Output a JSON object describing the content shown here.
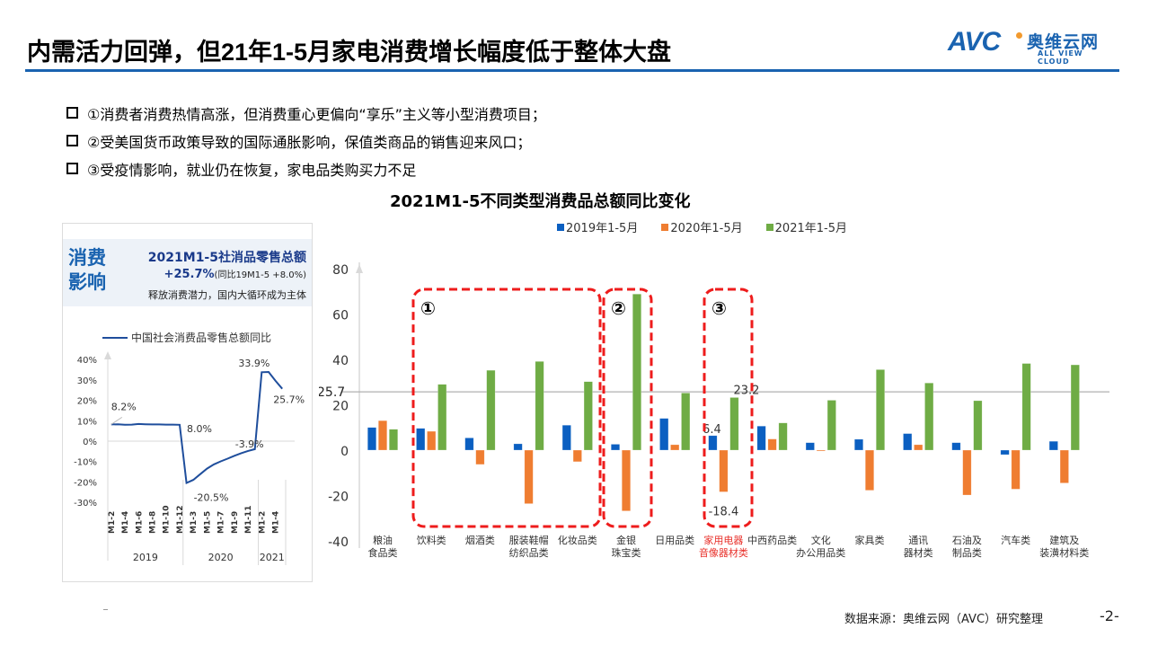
{
  "header": {
    "title": "内需活力回弹，但21年1-5月家电消费增长幅度低于整体大盘",
    "logo": {
      "mark": "AVC",
      "cn": "奥维云网",
      "en": "ALL VIEW CLOUD"
    }
  },
  "bullets": [
    "①消费者消费热情高涨，但消费重心更偏向“享乐”主义等小型消费项目；",
    "②受美国货币政策导致的国际通胀影响，保值类商品的销售迎来风口；",
    "③受疫情影响，就业仍在恢复，家电品类购买力不足"
  ],
  "panel": {
    "big_label": "消费影响",
    "headline": "2021M1-5社消品零售总额",
    "growth": "+25.7%",
    "growth_note": "(同比19M1-5 +8.0%)",
    "subtitle": "释放消费潜力，国内大循环成为主体",
    "legend": "中国社会消费品零售总额同比"
  },
  "chart_data": [
    {
      "type": "line",
      "title": "中国社会消费品零售总额同比",
      "x": [
        "M1-2",
        "M1-3",
        "M1-4",
        "M1-5",
        "M1-6",
        "M1-7",
        "M1-8",
        "M1-9",
        "M1-10",
        "M1-11",
        "M1-12",
        "M1-2",
        "M1-3",
        "M1-4",
        "M1-5",
        "M1-6",
        "M1-7",
        "M1-8",
        "M1-9",
        "M1-10",
        "M1-11",
        "M1-12",
        "M1-2",
        "M1-3",
        "M1-4",
        "M1-5"
      ],
      "tick_labels": [
        "M1-2",
        "M1-4",
        "M1-6",
        "M1-8",
        "M1-10",
        "M1-12",
        "M1-3",
        "M1-5",
        "M1-7",
        "M1-9",
        "M1-11",
        "M1-2",
        "M1-4"
      ],
      "year_groups": [
        {
          "year": "2019",
          "count": 11
        },
        {
          "year": "2020",
          "count": 11
        },
        {
          "year": "2021",
          "count": 4
        }
      ],
      "values": [
        8.2,
        8.3,
        8.0,
        8.1,
        8.4,
        8.3,
        8.2,
        8.2,
        8.1,
        8.1,
        8.0,
        -20.5,
        -19.0,
        -16.2,
        -13.5,
        -11.4,
        -9.9,
        -8.6,
        -7.2,
        -5.9,
        -4.8,
        -3.9,
        33.8,
        33.9,
        29.6,
        25.7
      ],
      "annotations": [
        "8.2%",
        "8.0%",
        "-20.5%",
        "-3.9%",
        "33.9%",
        "25.7%"
      ],
      "yticks": [
        "40%",
        "30%",
        "20%",
        "10%",
        "0%",
        "-10%",
        "-20%",
        "-30%"
      ],
      "ylim": [
        -30,
        40
      ]
    },
    {
      "type": "bar",
      "title": "2021M1-5不同类型消费品总额同比变化",
      "categories": [
        "粮油\n食品类",
        "饮料类",
        "烟酒类",
        "服装鞋帽\n纺织品类",
        "化妆品类",
        "金银\n珠宝类",
        "日用品类",
        "家用电器\n音像器材类",
        "中西药品类",
        "文化\n办公用品类",
        "家具类",
        "通讯\n器材类",
        "石油及\n制品类",
        "汽车类",
        "建筑及\n装潢材料类"
      ],
      "series": [
        {
          "name": "2019年1-5月",
          "color": "#0b5fc1",
          "values": [
            10.0,
            9.6,
            5.4,
            2.8,
            11.0,
            2.6,
            14.0,
            6.4,
            10.6,
            3.3,
            4.8,
            7.3,
            3.3,
            -2.0,
            3.9
          ]
        },
        {
          "name": "2020年1-5月",
          "color": "#ef7d31",
          "values": [
            13.0,
            8.3,
            -6.3,
            -23.6,
            -5.1,
            -26.8,
            2.4,
            -18.4,
            4.9,
            -0.3,
            -17.7,
            2.4,
            -19.8,
            -17.2,
            -14.5
          ]
        },
        {
          "name": "2021年1-5月",
          "color": "#6fac45",
          "values": [
            9.2,
            29.0,
            35.2,
            39.1,
            30.2,
            68.8,
            25.2,
            23.2,
            12.0,
            22.0,
            35.5,
            29.6,
            21.8,
            38.2,
            37.6
          ]
        }
      ],
      "reference_line": {
        "value": 25.7,
        "label": "25.7"
      },
      "data_labels": [
        "23.2",
        "6.4",
        "-18.4"
      ],
      "highlight_groups": [
        {
          "label": "①",
          "from": 1,
          "to": 4
        },
        {
          "label": "②",
          "from": 5,
          "to": 5
        },
        {
          "label": "③",
          "from": 7,
          "to": 7
        }
      ],
      "highlight_category": "家用电器\n音像器材类",
      "yticks": [
        "80",
        "60",
        "40",
        "20",
        "0",
        "-20",
        "-40"
      ],
      "ylim": [
        -40,
        80
      ],
      "legend_position": "top"
    }
  ],
  "footer": {
    "source": "数据来源：奥维云网（AVC）研究整理",
    "page": "-2-"
  }
}
